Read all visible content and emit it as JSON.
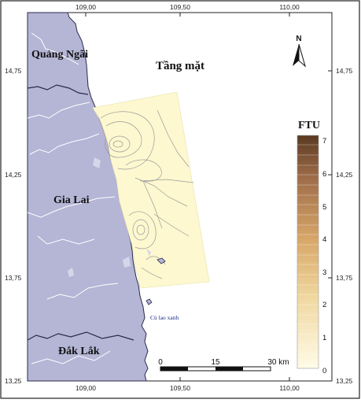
{
  "map": {
    "layer_title": "Tầng mặt",
    "north_label": "N",
    "legend": {
      "title": "FTU",
      "ticks": [
        "7",
        "6",
        "5",
        "4",
        "3",
        "2",
        "1",
        "0"
      ],
      "color_top": "#5a3a22",
      "color_mid": "#d8a86a",
      "color_bottom": "#fffbe8"
    },
    "longitude_ticks": [
      "109,00",
      "109,50",
      "110,00"
    ],
    "latitude_ticks": [
      "14,75",
      "14,25",
      "13,75",
      "13,25"
    ],
    "provinces": [
      "Quảng Ngãi",
      "Gia Lai",
      "Đắk Lắk"
    ],
    "island_label": "Cù lao xanh",
    "scale_bar": {
      "labels": [
        "0",
        "15",
        "30 km"
      ]
    },
    "colors": {
      "land": "#b5b5d6",
      "land_border": "#2a2a4a",
      "river": "#ffffff",
      "turbidity_field": "#fdf8cf",
      "contour": "#9a9a9a",
      "frame": "#222222"
    }
  }
}
